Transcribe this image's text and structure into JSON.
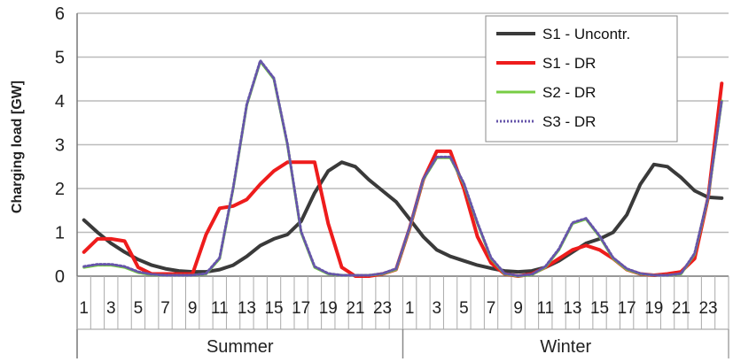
{
  "chart_data": {
    "type": "line",
    "ylabel": "Charging load [GW]",
    "ylim": [
      0,
      6
    ],
    "yticks": [
      0,
      1,
      2,
      3,
      4,
      5,
      6
    ],
    "grid": "horizontal",
    "legend_position": "top-right",
    "groups": [
      {
        "label": "Summer",
        "start": 0,
        "count": 24
      },
      {
        "label": "Winter",
        "start": 24,
        "count": 24
      }
    ],
    "x_tick_labels": [
      "1",
      "",
      "3",
      "",
      "5",
      "",
      "7",
      "",
      "9",
      "",
      "11",
      "",
      "13",
      "",
      "15",
      "",
      "17",
      "",
      "19",
      "",
      "21",
      "",
      "23",
      "",
      "1",
      "",
      "3",
      "",
      "5",
      "",
      "7",
      "",
      "9",
      "",
      "11",
      "",
      "13",
      "",
      "15",
      "",
      "17",
      "",
      "19",
      "",
      "21",
      "",
      "23",
      ""
    ],
    "series": [
      {
        "name": "S1 - Uncontr.",
        "color": "#3a3a3a",
        "style": "solid",
        "values": [
          1.28,
          1.0,
          0.75,
          0.55,
          0.38,
          0.25,
          0.17,
          0.12,
          0.1,
          0.1,
          0.15,
          0.25,
          0.45,
          0.7,
          0.85,
          0.95,
          1.25,
          1.9,
          2.4,
          2.6,
          2.5,
          2.2,
          1.95,
          1.7,
          1.3,
          0.9,
          0.6,
          0.45,
          0.35,
          0.25,
          0.18,
          0.12,
          0.1,
          0.12,
          0.2,
          0.35,
          0.55,
          0.75,
          0.85,
          1.0,
          1.4,
          2.1,
          2.55,
          2.5,
          2.25,
          1.95,
          1.8,
          1.78
        ]
      },
      {
        "name": "S1 - DR",
        "color": "#ee1c1c",
        "style": "solid",
        "values": [
          0.55,
          0.85,
          0.85,
          0.8,
          0.2,
          0.05,
          0.05,
          0.05,
          0.05,
          0.95,
          1.55,
          1.6,
          1.75,
          2.1,
          2.4,
          2.6,
          2.6,
          2.6,
          1.2,
          0.2,
          0.0,
          0.0,
          0.05,
          0.15,
          1.1,
          2.2,
          2.85,
          2.85,
          2.0,
          0.9,
          0.3,
          0.05,
          0.0,
          0.05,
          0.2,
          0.4,
          0.6,
          0.7,
          0.6,
          0.4,
          0.15,
          0.05,
          0.02,
          0.05,
          0.1,
          0.4,
          1.8,
          4.4
        ]
      },
      {
        "name": "S2 - DR",
        "color": "#77cc44",
        "style": "solid",
        "values": [
          0.2,
          0.25,
          0.25,
          0.2,
          0.08,
          0.03,
          0.02,
          0.02,
          0.02,
          0.05,
          0.4,
          2.0,
          3.9,
          4.9,
          4.5,
          3.0,
          1.0,
          0.2,
          0.05,
          0.02,
          0.02,
          0.02,
          0.05,
          0.15,
          1.1,
          2.2,
          2.7,
          2.7,
          2.1,
          1.2,
          0.4,
          0.05,
          0.0,
          0.03,
          0.2,
          0.6,
          1.2,
          1.3,
          0.9,
          0.4,
          0.15,
          0.05,
          0.02,
          0.02,
          0.05,
          0.5,
          1.8,
          4.0
        ]
      },
      {
        "name": "S3 - DR",
        "color": "#6655aa",
        "style": "dotted",
        "values": [
          0.22,
          0.27,
          0.27,
          0.22,
          0.1,
          0.04,
          0.02,
          0.02,
          0.02,
          0.06,
          0.42,
          2.02,
          3.92,
          4.92,
          4.52,
          3.02,
          1.02,
          0.22,
          0.06,
          0.02,
          0.02,
          0.02,
          0.06,
          0.17,
          1.12,
          2.22,
          2.72,
          2.72,
          2.12,
          1.22,
          0.42,
          0.06,
          0.01,
          0.04,
          0.22,
          0.62,
          1.22,
          1.32,
          0.92,
          0.42,
          0.17,
          0.06,
          0.02,
          0.02,
          0.06,
          0.52,
          1.82,
          4.02
        ]
      }
    ]
  },
  "legend": {
    "items": [
      {
        "label": "S1 - Uncontr."
      },
      {
        "label": "S1 - DR"
      },
      {
        "label": "S2 - DR"
      },
      {
        "label": "S3 - DR"
      }
    ]
  }
}
